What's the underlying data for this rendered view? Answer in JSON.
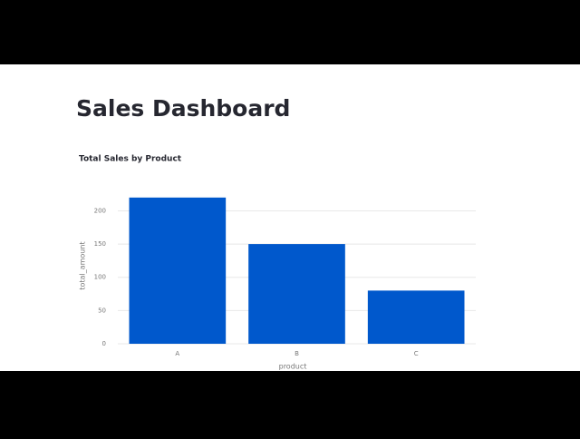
{
  "header": {
    "title": "Sales Dashboard"
  },
  "chart_data": {
    "type": "bar",
    "title": "Total Sales by Product",
    "categories": [
      "A",
      "B",
      "C"
    ],
    "values": [
      220,
      150,
      80
    ],
    "color": "#0058cc",
    "x_label": "product",
    "y_label": "total_amount",
    "ylim": [
      0,
      232
    ],
    "yticks": [
      0,
      50,
      100,
      150,
      200
    ],
    "grid": true
  }
}
